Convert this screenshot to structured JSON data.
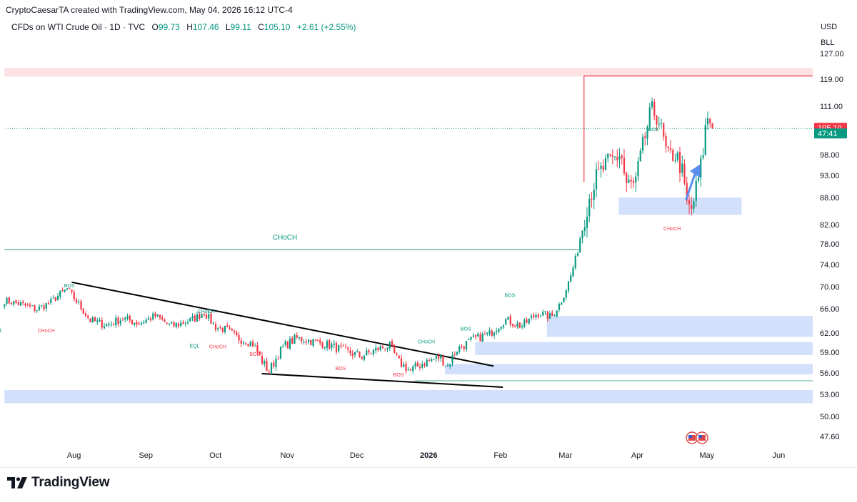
{
  "header": {
    "attribution": "CryptoCaesarTA created with TradingView.com, May 04, 2026 16:12 UTC-4",
    "symbol": "CFDs on WTI Crude Oil · 1D · TVC",
    "open_label": "O",
    "open": "99.73",
    "high_label": "H",
    "high": "107.46",
    "low_label": "L",
    "low": "99.11",
    "close_label": "C",
    "close": "105.10",
    "change": "+2.61 (+2.55%)"
  },
  "price_scale": {
    "currency": "USD",
    "unit": "BLL"
  },
  "brand": {
    "name": "TradingView"
  },
  "colors": {
    "up": "#089981",
    "down": "#f23645",
    "zone_supply": "#fde2e4",
    "zone_demand": "#d2e0fb",
    "trendline": "#000000",
    "choch_line": "#4caf8f",
    "arrow": "#5b8def"
  },
  "icons": [
    "tradingview-logo-icon",
    "us-flag-event-icon",
    "up-arrow-icon"
  ],
  "chart_data": {
    "type": "candlestick",
    "title": "CFDs on WTI Crude Oil · 1D · TVC",
    "y_ticks": [
      127.0,
      119.0,
      111.0,
      103.0,
      98.0,
      93.0,
      88.0,
      82.0,
      78.0,
      74.0,
      70.0,
      66.0,
      62.0,
      59.0,
      56.0,
      53.0,
      50.0,
      47.6
    ],
    "x_ticks": [
      {
        "label": "Aug",
        "date": "2025-08-01"
      },
      {
        "label": "Sep",
        "date": "2025-09-01"
      },
      {
        "label": "Oct",
        "date": "2025-10-01"
      },
      {
        "label": "Nov",
        "date": "2025-11-01"
      },
      {
        "label": "Dec",
        "date": "2025-12-01"
      },
      {
        "label": "2026",
        "date": "2026-01-01",
        "bold": true
      },
      {
        "label": "Feb",
        "date": "2026-02-01"
      },
      {
        "label": "Mar",
        "date": "2026-03-01"
      },
      {
        "label": "Apr",
        "date": "2026-04-01"
      },
      {
        "label": "May",
        "date": "2026-05-01"
      },
      {
        "label": "Jun",
        "date": "2026-06-01"
      }
    ],
    "price_labels": [
      {
        "text": "105.10",
        "price": 105.1,
        "color": "#f23645"
      },
      {
        "text": "47:41",
        "price": 103.55,
        "color": "#089981"
      }
    ],
    "last_price": 105.1,
    "price_path": [
      [
        "2025-07-02",
        67.5
      ],
      [
        "2025-07-09",
        66.8
      ],
      [
        "2025-07-16",
        65.9
      ],
      [
        "2025-07-22",
        67.2
      ],
      [
        "2025-07-25",
        68.3
      ],
      [
        "2025-07-29",
        69.6
      ],
      [
        "2025-08-04",
        66.2
      ],
      [
        "2025-08-08",
        64.1
      ],
      [
        "2025-08-15",
        63.3
      ],
      [
        "2025-08-22",
        64.4
      ],
      [
        "2025-08-29",
        63.6
      ],
      [
        "2025-09-05",
        64.8
      ],
      [
        "2025-09-12",
        63.1
      ],
      [
        "2025-09-19",
        63.9
      ],
      [
        "2025-09-23",
        64.6
      ],
      [
        "2025-09-26",
        65.5
      ],
      [
        "2025-10-01",
        63.0
      ],
      [
        "2025-10-06",
        62.5
      ],
      [
        "2025-10-10",
        61.3
      ],
      [
        "2025-10-17",
        60.4
      ],
      [
        "2025-10-21",
        57.8
      ],
      [
        "2025-10-24",
        56.2
      ],
      [
        "2025-10-30",
        59.8
      ],
      [
        "2025-11-05",
        61.2
      ],
      [
        "2025-11-12",
        60.7
      ],
      [
        "2025-11-19",
        60.1
      ],
      [
        "2025-11-26",
        59.2
      ],
      [
        "2025-12-03",
        58.4
      ],
      [
        "2025-12-10",
        59.5
      ],
      [
        "2025-12-15",
        60.1
      ],
      [
        "2025-12-19",
        57.6
      ],
      [
        "2025-12-24",
        56.3
      ],
      [
        "2025-12-30",
        57.5
      ],
      [
        "2026-01-06",
        58.3
      ],
      [
        "2026-01-09",
        56.9
      ],
      [
        "2026-01-13",
        59.4
      ],
      [
        "2026-01-20",
        61.0
      ],
      [
        "2026-01-27",
        61.8
      ],
      [
        "2026-02-03",
        64.2
      ],
      [
        "2026-02-10",
        63.1
      ],
      [
        "2026-02-17",
        65.3
      ],
      [
        "2026-02-23",
        64.6
      ],
      [
        "2026-02-27",
        67.2
      ],
      [
        "2026-03-03",
        71.5
      ],
      [
        "2026-03-06",
        76.0
      ],
      [
        "2026-03-10",
        86.0
      ],
      [
        "2026-03-13",
        91.0
      ],
      [
        "2026-03-17",
        94.5
      ],
      [
        "2026-03-20",
        96.0
      ],
      [
        "2026-03-25",
        98.5
      ],
      [
        "2026-03-27",
        91.0
      ],
      [
        "2026-03-31",
        90.5
      ],
      [
        "2026-04-03",
        99.0
      ],
      [
        "2026-04-07",
        110.0
      ],
      [
        "2026-04-10",
        108.0
      ],
      [
        "2026-04-14",
        97.0
      ],
      [
        "2026-04-17",
        98.5
      ],
      [
        "2026-04-20",
        95.0
      ],
      [
        "2026-04-22",
        87.0
      ],
      [
        "2026-04-24",
        84.5
      ],
      [
        "2026-04-27",
        91.0
      ],
      [
        "2026-04-29",
        97.0
      ],
      [
        "2026-05-01",
        108.5
      ],
      [
        "2026-05-04",
        105.1
      ]
    ],
    "zones": [
      {
        "kind": "supply",
        "from": "2025-07-02",
        "to": "end",
        "top": 122.5,
        "bottom": 119.8
      },
      {
        "kind": "demand",
        "from": "2026-03-24",
        "to": "2026-05-16",
        "top": 88.0,
        "bottom": 84.2
      },
      {
        "kind": "demand",
        "from": "2026-02-21",
        "to": "end",
        "top": 64.8,
        "bottom": 61.4
      },
      {
        "kind": "demand",
        "from": "2026-01-21",
        "to": "end",
        "top": 60.6,
        "bottom": 58.6
      },
      {
        "kind": "demand",
        "from": "2026-01-08",
        "to": "end",
        "top": 57.3,
        "bottom": 55.8
      },
      {
        "kind": "demand",
        "from": "2025-07-02",
        "to": "end",
        "top": 53.6,
        "bottom": 51.8
      }
    ],
    "lines": [
      {
        "kind": "trendline",
        "from": [
          "2025-07-31",
          70.8
        ],
        "to": [
          "2026-01-29",
          57.0
        ]
      },
      {
        "kind": "trendline",
        "from": [
          "2025-10-21",
          55.9
        ],
        "to": [
          "2026-02-02",
          54.0
        ]
      },
      {
        "kind": "choch",
        "from": [
          "2025-07-02",
          76.9
        ],
        "to": [
          "2026-03-07",
          76.9
        ]
      },
      {
        "kind": "support",
        "from": [
          "2025-12-26",
          54.9
        ],
        "to": [
          "end",
          54.9
        ]
      },
      {
        "kind": "red-box",
        "from": [
          "2026-03-09",
          120.0
        ],
        "to": [
          "end",
          120.0
        ]
      }
    ],
    "annotations": [
      {
        "text": "CHoCH",
        "date": "2025-10-31",
        "price": 78.9,
        "color": "#089981",
        "size": 10
      },
      {
        "text": "BOS",
        "date": "2025-07-30",
        "price": 69.9,
        "color": "#089981",
        "size": 7
      },
      {
        "text": "EQL",
        "date": "2025-06-29",
        "price": 62.2,
        "color": "#089981",
        "size": 7
      },
      {
        "text": "CHoCH",
        "date": "2025-07-20",
        "price": 62.1,
        "color": "#f23645",
        "size": 7
      },
      {
        "text": "CHoCH",
        "date": "2025-09-27",
        "price": 65.3,
        "color": "#089981",
        "size": 7
      },
      {
        "text": "EQL",
        "date": "2025-09-22",
        "price": 59.7,
        "color": "#089981",
        "size": 7
      },
      {
        "text": "CHoCH",
        "date": "2025-10-02",
        "price": 59.6,
        "color": "#f23645",
        "size": 7
      },
      {
        "text": "BOS",
        "date": "2025-10-18",
        "price": 58.5,
        "color": "#f23645",
        "size": 7
      },
      {
        "text": "BOS",
        "date": "2025-11-24",
        "price": 56.4,
        "color": "#f23645",
        "size": 7
      },
      {
        "text": "BOS",
        "date": "2025-12-19",
        "price": 55.5,
        "color": "#f23645",
        "size": 7
      },
      {
        "text": "CHoCH",
        "date": "2025-12-31",
        "price": 60.4,
        "color": "#089981",
        "size": 7
      },
      {
        "text": "BOS",
        "date": "2026-01-17",
        "price": 62.4,
        "color": "#089981",
        "size": 7
      },
      {
        "text": "BOS",
        "date": "2026-02-05",
        "price": 68.1,
        "color": "#089981",
        "size": 7
      },
      {
        "text": "BOS",
        "date": "2026-04-08",
        "price": 104.2,
        "color": "#089981",
        "size": 7
      },
      {
        "text": "CHoCH",
        "date": "2026-04-16",
        "price": 80.8,
        "color": "#f23645",
        "size": 7
      }
    ]
  }
}
